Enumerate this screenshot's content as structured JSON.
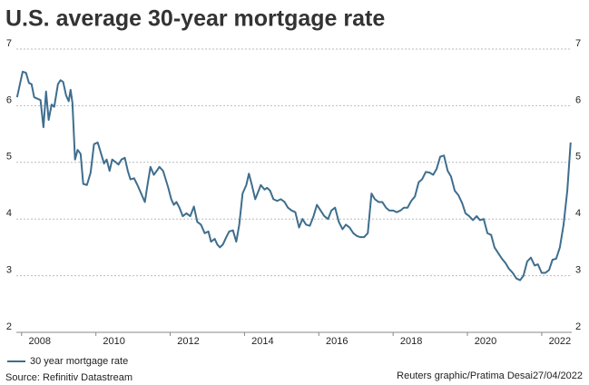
{
  "chart_data": {
    "type": "line",
    "title": "U.S. average 30-year mortgage rate",
    "source": "Source: Refinitiv Datastream",
    "credit": "Reuters graphic/Pratima Desai27/04/2022",
    "x": [
      2007.39,
      2007.54,
      2007.63,
      2007.71,
      2007.78,
      2007.85,
      2007.95,
      2008.02,
      2008.1,
      2008.17,
      2008.24,
      2008.32,
      2008.39,
      2008.49,
      2008.56,
      2008.63,
      2008.71,
      2008.78,
      2008.83,
      2008.88,
      2008.95,
      2009.02,
      2009.1,
      2009.17,
      2009.27,
      2009.37,
      2009.46,
      2009.56,
      2009.63,
      2009.73,
      2009.8,
      2009.88,
      2009.95,
      2010.05,
      2010.12,
      2010.2,
      2010.29,
      2010.37,
      2010.44,
      2010.54,
      2010.63,
      2010.73,
      2010.83,
      2010.9,
      2010.98,
      2011.07,
      2011.15,
      2011.22,
      2011.32,
      2011.39,
      2011.46,
      2011.54,
      2011.61,
      2011.68,
      2011.76,
      2011.85,
      2011.95,
      2012.05,
      2012.15,
      2012.24,
      2012.34,
      2012.44,
      2012.54,
      2012.61,
      2012.71,
      2012.78,
      2012.85,
      2012.93,
      2013.02,
      2013.1,
      2013.2,
      2013.29,
      2013.37,
      2013.46,
      2013.56,
      2013.63,
      2013.71,
      2013.8,
      2013.88,
      2013.95,
      2014.05,
      2014.12,
      2014.2,
      2014.29,
      2014.39,
      2014.49,
      2014.59,
      2014.68,
      2014.78,
      2014.88,
      2014.98,
      2015.07,
      2015.17,
      2015.27,
      2015.37,
      2015.46,
      2015.56,
      2015.66,
      2015.76,
      2015.85,
      2015.95,
      2016.05,
      2016.15,
      2016.24,
      2016.34,
      2016.44,
      2016.54,
      2016.63,
      2016.73,
      2016.83,
      2016.93,
      2017.02,
      2017.12,
      2017.22,
      2017.32,
      2017.41,
      2017.51,
      2017.61,
      2017.71,
      2017.8,
      2017.9,
      2018.0,
      2018.1,
      2018.2,
      2018.29,
      2018.39,
      2018.49,
      2018.59,
      2018.68,
      2018.78,
      2018.88,
      2018.98,
      2019.07,
      2019.17,
      2019.27,
      2019.37,
      2019.46,
      2019.56,
      2019.66,
      2019.76,
      2019.85,
      2019.95,
      2020.05,
      2020.15,
      2020.24,
      2020.34,
      2020.44,
      2020.54,
      2020.63,
      2020.73,
      2020.83,
      2020.93,
      2021.02,
      2021.12,
      2021.22,
      2021.32,
      2021.41,
      2021.51,
      2021.61,
      2021.71,
      2021.8,
      2021.9,
      2022.0,
      2022.1,
      2022.2,
      2022.29
    ],
    "series": [
      {
        "name": "30 year mortgage rate",
        "color": "#3e6e8e",
        "values": [
          6.15,
          6.6,
          6.58,
          6.4,
          6.38,
          6.15,
          6.12,
          6.1,
          5.62,
          6.25,
          5.75,
          6.02,
          5.98,
          6.38,
          6.45,
          6.42,
          6.18,
          6.08,
          6.28,
          6.05,
          5.05,
          5.22,
          5.15,
          4.62,
          4.6,
          4.82,
          5.32,
          5.35,
          5.2,
          4.98,
          5.05,
          4.85,
          5.05,
          5.0,
          4.96,
          5.05,
          5.08,
          4.85,
          4.7,
          4.72,
          4.6,
          4.45,
          4.3,
          4.6,
          4.92,
          4.78,
          4.85,
          4.92,
          4.85,
          4.7,
          4.55,
          4.35,
          4.25,
          4.3,
          4.2,
          4.05,
          4.1,
          4.05,
          4.22,
          3.95,
          3.9,
          3.75,
          3.78,
          3.6,
          3.65,
          3.55,
          3.5,
          3.55,
          3.68,
          3.78,
          3.8,
          3.6,
          3.9,
          4.45,
          4.6,
          4.8,
          4.6,
          4.35,
          4.48,
          4.6,
          4.52,
          4.55,
          4.5,
          4.35,
          4.32,
          4.35,
          4.3,
          4.2,
          4.15,
          4.12,
          3.85,
          4.0,
          3.9,
          3.88,
          4.05,
          4.25,
          4.15,
          4.05,
          4.0,
          4.15,
          4.2,
          3.95,
          3.82,
          3.9,
          3.85,
          3.75,
          3.7,
          3.68,
          3.68,
          3.75,
          4.45,
          4.35,
          4.3,
          4.3,
          4.2,
          4.15,
          4.15,
          4.12,
          4.15,
          4.2,
          4.2,
          4.32,
          4.4,
          4.65,
          4.7,
          4.83,
          4.82,
          4.78,
          4.88,
          5.1,
          5.12,
          4.85,
          4.75,
          4.5,
          4.42,
          4.28,
          4.1,
          4.05,
          3.98,
          4.05,
          3.98,
          4.0,
          3.75,
          3.72,
          3.5,
          3.4,
          3.3,
          3.22,
          3.12,
          3.05,
          2.95,
          2.92,
          3.0,
          3.25,
          3.32,
          3.18,
          3.2,
          3.05,
          3.05,
          3.1,
          3.28,
          3.3,
          3.5,
          3.9,
          4.5,
          5.35
        ]
      }
    ],
    "xlim": [
      2007.37,
      2022.32
    ],
    "xticks": [
      2008,
      2010,
      2012,
      2014,
      2016,
      2018,
      2020,
      2022
    ],
    "ylim": [
      2,
      7
    ],
    "yticks": [
      2,
      3,
      4,
      5,
      6,
      7
    ],
    "y2lim": [
      2,
      7
    ],
    "y2ticks": [
      2,
      3,
      4,
      5,
      6,
      7
    ],
    "grid": true
  }
}
